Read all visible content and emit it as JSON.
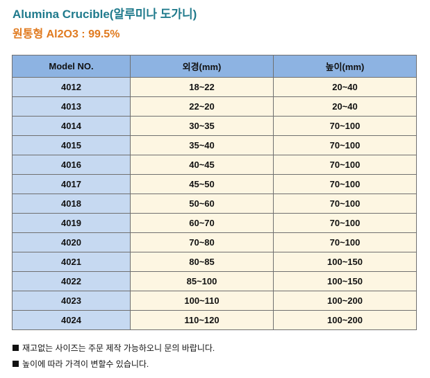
{
  "header": {
    "title": "Alumina Crucible(알루미나 도가니)",
    "subtitle": "원통형  Al2O3 : 99.5%"
  },
  "table": {
    "columns": [
      "Model NO.",
      "외경(mm)",
      "높이(mm)"
    ],
    "rows": [
      [
        "4012",
        "18~22",
        "20~40"
      ],
      [
        "4013",
        "22~20",
        "20~40"
      ],
      [
        "4014",
        "30~35",
        "70~100"
      ],
      [
        "4015",
        "35~40",
        "70~100"
      ],
      [
        "4016",
        "40~45",
        "70~100"
      ],
      [
        "4017",
        "45~50",
        "70~100"
      ],
      [
        "4018",
        "50~60",
        "70~100"
      ],
      [
        "4019",
        "60~70",
        "70~100"
      ],
      [
        "4020",
        "70~80",
        "70~100"
      ],
      [
        "4021",
        "80~85",
        "100~150"
      ],
      [
        "4022",
        "85~100",
        "100~150"
      ],
      [
        "4023",
        "100~110",
        "100~200"
      ],
      [
        "4024",
        "110~120",
        "100~200"
      ]
    ]
  },
  "notes": [
    "재고없는 사이즈는 주문 제작 가능하오니 문의 바랍니다.",
    "높이에 따라 가격이 변할수 있습니다."
  ],
  "colors": {
    "title": "#1f7a8c",
    "subtitle": "#e07a1f",
    "header_bg": "#8db3e2",
    "model_col_bg": "#c6d9f1",
    "value_col_bg": "#fdf6e2"
  }
}
